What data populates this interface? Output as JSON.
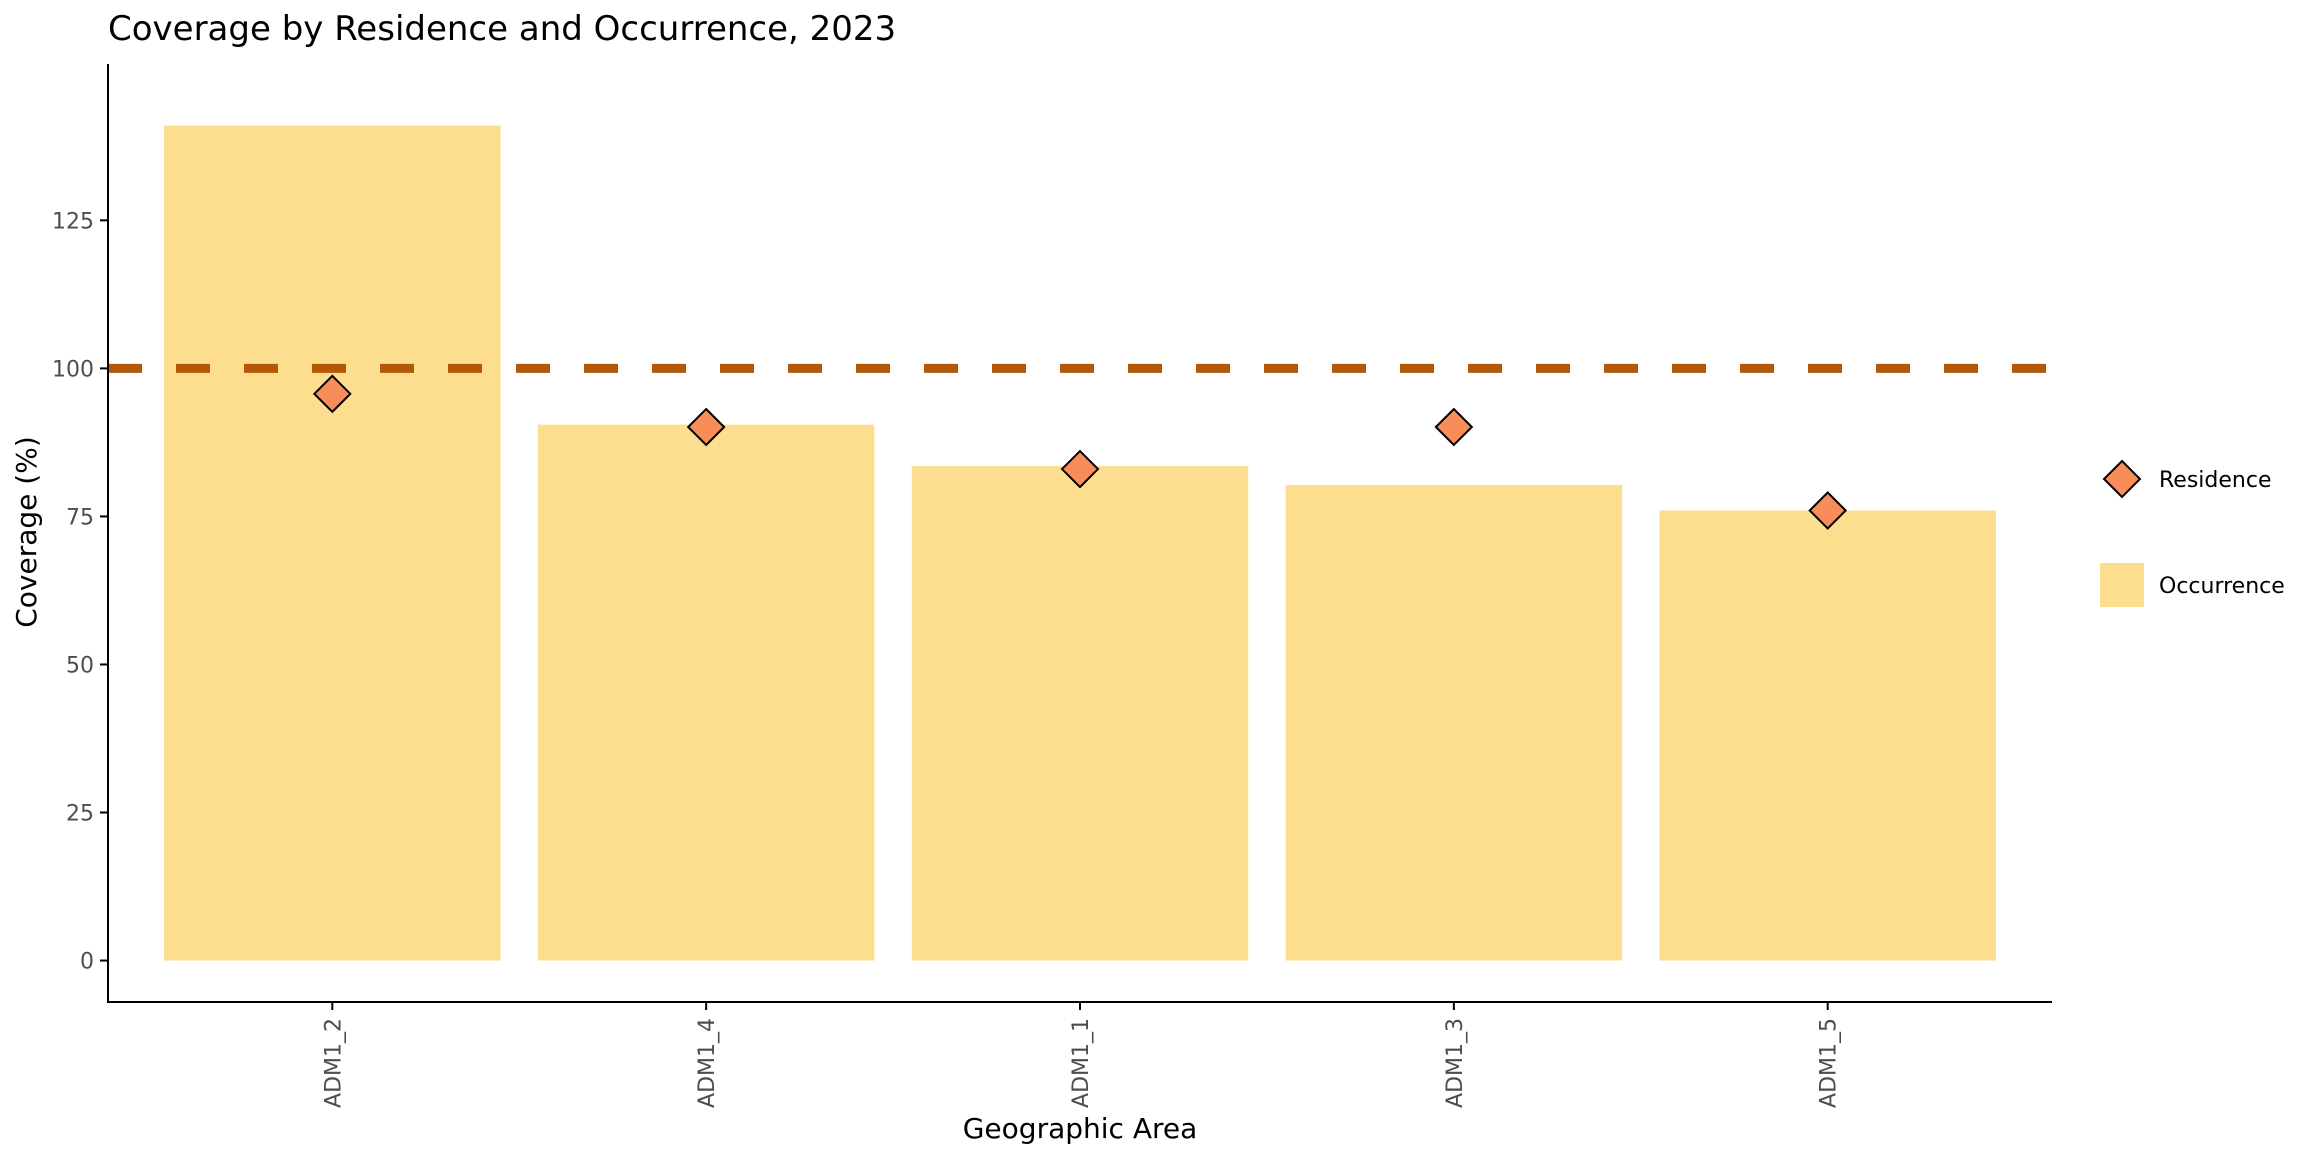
{
  "chart_data": {
    "type": "bar",
    "title": "Coverage by Residence and Occurrence, 2023",
    "xlabel": "Geographic Area",
    "ylabel": "Coverage (%)",
    "categories": [
      "ADM1_2",
      "ADM1_4",
      "ADM1_1",
      "ADM1_3",
      "ADM1_5"
    ],
    "series": [
      {
        "name": "Occurrence",
        "type": "bar",
        "values": [
          141,
          90.5,
          83.5,
          80.3,
          76
        ]
      },
      {
        "name": "Residence",
        "type": "point",
        "shape": "diamond",
        "values": [
          95.7,
          90.1,
          83,
          90.1,
          76
        ]
      }
    ],
    "reference_line": {
      "y": 100,
      "style": "dashed"
    },
    "ylim": [
      -7,
      146
    ],
    "yticks": [
      0,
      25,
      50,
      75,
      100,
      125
    ],
    "grid": false,
    "legend_position": "right",
    "colors": {
      "occurrence_fill": "#FDDE8F",
      "residence_fill": "#F98D5A",
      "residence_stroke": "#000000",
      "reference_line": "#B35806",
      "axis": "#000000"
    }
  }
}
